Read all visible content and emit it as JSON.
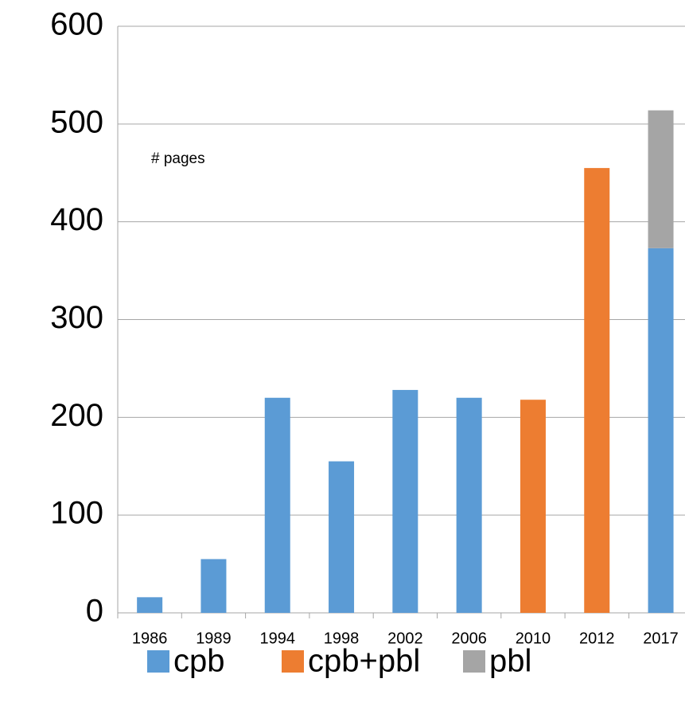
{
  "chart_data": {
    "type": "stacked_bar",
    "annotation": "# pages",
    "categories": [
      "1986",
      "1989",
      "1994",
      "1998",
      "2002",
      "2006",
      "2010",
      "2012",
      "2017"
    ],
    "series": [
      {
        "name": "cpb",
        "color": "#5b9bd5",
        "values": [
          16,
          55,
          220,
          155,
          228,
          220,
          null,
          null,
          373
        ]
      },
      {
        "name": "cpb+pbl",
        "color": "#ed7d31",
        "values": [
          null,
          null,
          null,
          null,
          null,
          null,
          218,
          455,
          null
        ]
      },
      {
        "name": "pbl",
        "color": "#a5a5a5",
        "values": [
          null,
          null,
          null,
          null,
          null,
          null,
          null,
          null,
          141
        ]
      }
    ],
    "ylim": [
      0,
      600
    ],
    "yticks": [
      0,
      100,
      200,
      300,
      400,
      500,
      600
    ],
    "grid": true
  }
}
